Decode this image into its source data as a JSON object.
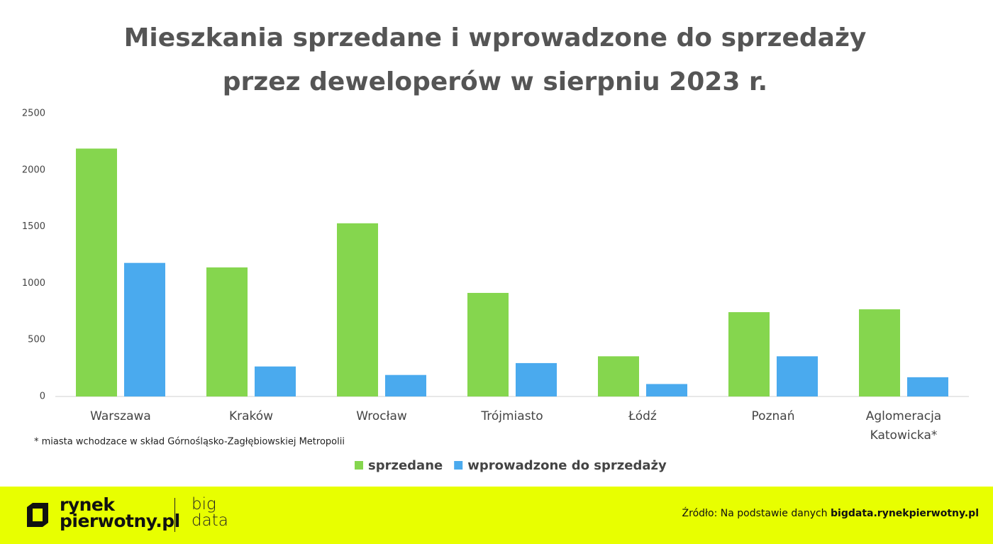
{
  "chart_data": {
    "type": "bar",
    "title": [
      "Mieszkania sprzedane i wprowadzone do sprzedaży",
      "przez deweloperów w sierpniu 2023 r."
    ],
    "categories": [
      "Warszawa",
      "Kraków",
      "Wrocław",
      "Trójmiasto",
      "Łódź",
      "Poznań",
      "Aglomeracja Katowicka*"
    ],
    "series": [
      {
        "name": "sprzedane",
        "color": "#85d64e",
        "values": [
          2190,
          1140,
          1530,
          915,
          355,
          745,
          770
        ]
      },
      {
        "name": "wprowadzone do sprzedaży",
        "color": "#4aaaee",
        "values": [
          1180,
          265,
          190,
          295,
          110,
          355,
          170
        ]
      }
    ],
    "ylim": [
      0,
      2500
    ],
    "yticks": [
      0,
      500,
      1000,
      1500,
      2000,
      2500
    ],
    "grid": false,
    "legend": "bottom"
  },
  "footnote": "* miasta wchodzace w skład Górnośląsko-Zagłębiowskiej Metropolii",
  "footer": {
    "logo": [
      "rynek",
      "pierwotny.pl"
    ],
    "logo2": [
      "big",
      "data"
    ],
    "source_label": "Źródło: Na podstawie danych",
    "source_link": "bigdata.rynekpierwotny.pl"
  }
}
